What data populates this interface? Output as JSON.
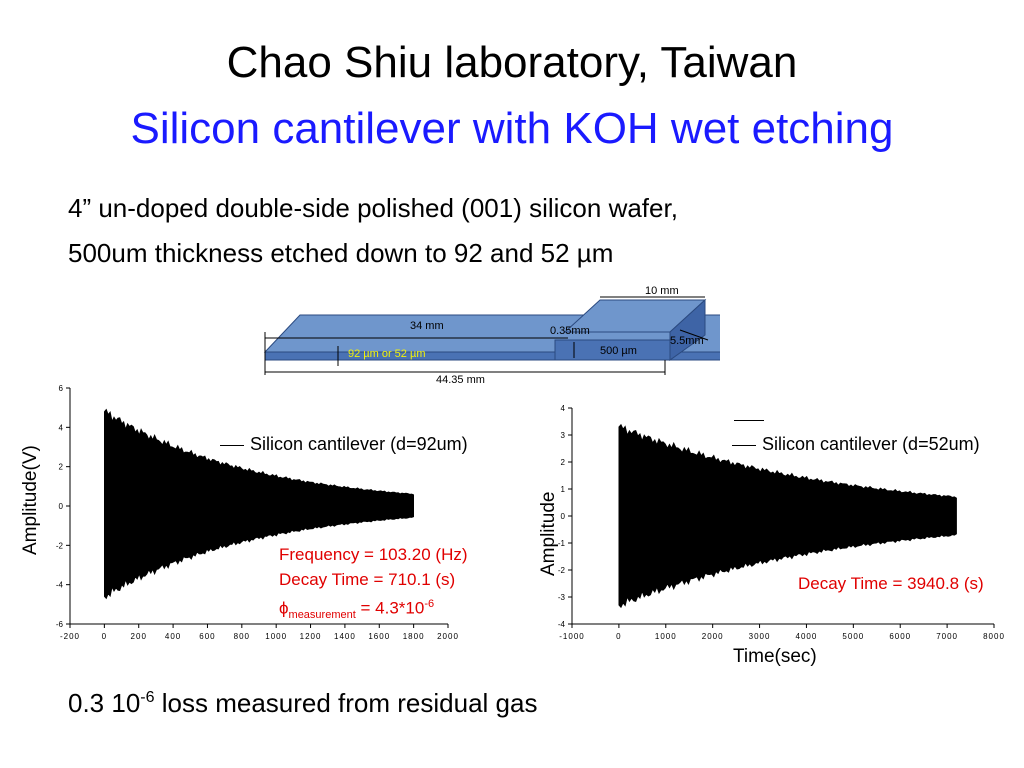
{
  "title": {
    "line1": "Chao Shiu laboratory, Taiwan",
    "line2": "Silicon cantilever with KOH wet etching"
  },
  "bullets": {
    "line1": "4” un-doped double-side polished (001) silicon wafer,",
    "line2": "500um thickness etched down to 92 and 52 µm",
    "footer_value": "0.3 10",
    "footer_exp": "-6",
    "footer_rest": " loss measured from residual gas"
  },
  "diagram": {
    "dims": {
      "width": "10 mm",
      "length": "34 mm",
      "gap": "0.35mm",
      "depth": "5.5mm",
      "thickness": "500 µm",
      "thin": "92 µm  or 52 µm",
      "total": "44.35 mm"
    },
    "colors": {
      "top": "#6f96cc",
      "front": "#4a72b4",
      "edge": "#2b4a80",
      "thin_label": "#f2f20a"
    }
  },
  "chart_data": [
    {
      "type": "line",
      "title": "",
      "xlabel": "",
      "ylabel": "Amplitude(V)",
      "xlim": [
        -200,
        2000
      ],
      "ylim": [
        -6,
        6
      ],
      "x_ticks": [
        "-200",
        "0",
        "200",
        "400",
        "600",
        "800",
        "1000",
        "1200",
        "1400",
        "1600",
        "1800",
        "2000"
      ],
      "y_ticks": [
        "-6",
        "-4",
        "-2",
        "0",
        "2",
        "4",
        "6"
      ],
      "series": [
        {
          "name": "Silicon cantilever (d=92um)",
          "kind": "decaying oscillation envelope",
          "x_start": 0,
          "x_end": 1800,
          "upper_start": 4.8,
          "upper_end": 0.6,
          "lower_start": -4.6,
          "lower_end": -0.6,
          "decay_time": 710.1
        }
      ],
      "legend": {
        "position": "top-right",
        "entries": [
          "Silicon cantilever (d=92um)"
        ]
      },
      "annotations": {
        "frequency": "Frequency = 103.20 (Hz)",
        "decay": "Decay Time = 710.1 (s)",
        "phi_symbol": "ϕ",
        "phi_sub": "measurement",
        "phi_value": " = 4.3*10",
        "phi_exp": "-6"
      },
      "color": "#e00000"
    },
    {
      "type": "line",
      "title": "",
      "xlabel": "Time(sec)",
      "ylabel": "Amplitude",
      "xlim": [
        -1000,
        8000
      ],
      "ylim": [
        -4,
        4
      ],
      "x_ticks": [
        "-1000",
        "0",
        "1000",
        "2000",
        "3000",
        "4000",
        "5000",
        "6000",
        "7000",
        "8000"
      ],
      "y_ticks": [
        "-4",
        "-3",
        "-2",
        "-1",
        "0",
        "1",
        "2",
        "3",
        "4"
      ],
      "series": [
        {
          "name": "Silicon cantilever (d=52um)",
          "kind": "decaying oscillation envelope",
          "x_start": 0,
          "x_end": 7200,
          "upper_start": 3.3,
          "upper_end": 0.7,
          "lower_start": -3.3,
          "lower_end": -0.7,
          "decay_time": 3940.8
        }
      ],
      "legend": {
        "position": "top-right",
        "entries": [
          "Silicon cantilever (d=52um)"
        ]
      },
      "annotations": {
        "decay": "Decay Time = 3940.8 (s)"
      },
      "color": "#e00000"
    }
  ]
}
